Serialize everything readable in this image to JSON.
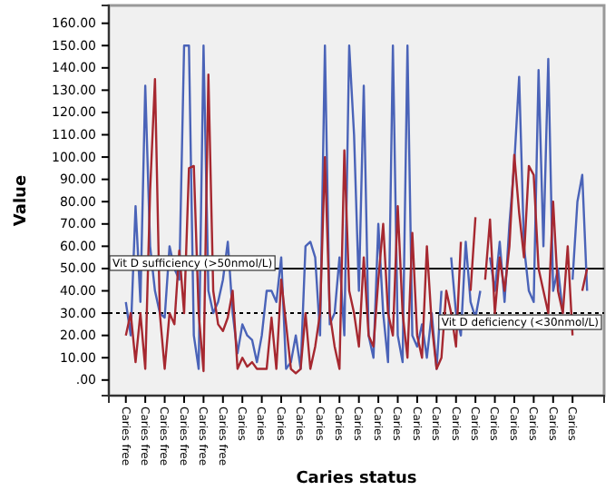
{
  "chart_data": {
    "type": "line",
    "xlabel": "Caries status",
    "ylabel": "Value",
    "categories": [
      "Caries free",
      null,
      null,
      null,
      "Caries free",
      null,
      null,
      null,
      "Caries free",
      null,
      null,
      null,
      "Caries free",
      null,
      null,
      null,
      "Caries free",
      null,
      null,
      null,
      "Caries free",
      null,
      null,
      null,
      "Caries",
      null,
      null,
      null,
      "Caries",
      null,
      null,
      null,
      "Caries",
      null,
      null,
      null,
      "Caries",
      null,
      null,
      null,
      "Caries",
      null,
      null,
      null,
      "Caries",
      null,
      null,
      null,
      "Caries",
      null,
      null,
      null,
      "Caries",
      null,
      null,
      null,
      "Caries",
      null,
      null,
      null,
      "Caries",
      null,
      null,
      null,
      "Caries",
      null,
      null,
      null,
      "Caries",
      null,
      null,
      null,
      "Caries",
      null,
      null,
      null,
      "Caries",
      null,
      null,
      null,
      "Caries",
      null,
      null,
      null,
      "Caries",
      null,
      null,
      null,
      "Caries",
      null,
      null,
      null,
      "Caries",
      null,
      null,
      null
    ],
    "series": [
      {
        "color": "#4a63b8",
        "values": [
          35,
          20,
          78,
          35,
          132,
          60,
          40,
          30,
          28,
          60,
          50,
          45,
          150,
          150,
          20,
          5,
          150,
          40,
          30,
          35,
          45,
          62,
          30,
          12,
          25,
          20,
          18,
          8,
          20,
          40,
          40,
          35,
          55,
          5,
          8,
          20,
          5,
          60,
          62,
          55,
          20,
          150,
          25,
          30,
          55,
          20,
          150,
          110,
          40,
          132,
          20,
          10,
          70,
          30,
          8,
          150,
          20,
          8,
          150,
          20,
          15,
          25,
          10,
          30,
          5,
          40,
          null,
          55,
          30,
          20,
          62,
          35,
          28,
          40,
          null,
          55,
          40,
          62,
          35,
          70,
          97,
          136,
          60,
          40,
          35,
          139,
          60,
          144,
          40,
          50,
          30,
          null,
          45,
          80,
          92,
          40
        ]
      },
      {
        "color": "#a62830",
        "values": [
          20,
          30,
          8,
          30,
          5,
          85,
          135,
          30,
          5,
          30,
          25,
          58,
          30,
          95,
          96,
          30,
          4,
          137,
          40,
          25,
          22,
          28,
          40,
          5,
          10,
          6,
          8,
          5,
          5,
          5,
          28,
          5,
          45,
          25,
          5,
          3,
          5,
          30,
          5,
          15,
          30,
          100,
          30,
          15,
          5,
          103,
          40,
          30,
          15,
          55,
          20,
          15,
          45,
          70,
          30,
          20,
          78,
          30,
          10,
          66,
          20,
          10,
          60,
          25,
          5,
          10,
          40,
          30,
          15,
          62,
          null,
          40,
          73,
          null,
          45,
          72,
          30,
          55,
          40,
          60,
          101,
          75,
          55,
          96,
          92,
          50,
          40,
          30,
          80,
          40,
          30,
          60,
          20,
          null,
          40,
          50
        ]
      }
    ],
    "ylim": [
      -7,
      168
    ],
    "yticks": [
      {
        "value": 0,
        "label": ".00"
      },
      {
        "value": 10,
        "label": "10.00"
      },
      {
        "value": 20,
        "label": "20.00"
      },
      {
        "value": 30,
        "label": "30.00"
      },
      {
        "value": 40,
        "label": "40.00"
      },
      {
        "value": 50,
        "label": "50.00"
      },
      {
        "value": 60,
        "label": "60.00"
      },
      {
        "value": 70,
        "label": "70.00"
      },
      {
        "value": 80,
        "label": "80.00"
      },
      {
        "value": 90,
        "label": "90.00"
      },
      {
        "value": 100,
        "label": "100.00"
      },
      {
        "value": 110,
        "label": "110.00"
      },
      {
        "value": 120,
        "label": "120.00"
      },
      {
        "value": 130,
        "label": "130.00"
      },
      {
        "value": 140,
        "label": "140.00"
      },
      {
        "value": 150,
        "label": "150.00"
      },
      {
        "value": 160,
        "label": "160.00"
      }
    ],
    "ref_lines": [
      {
        "axis": "y",
        "value": 50,
        "label": "Vit D sufficiency (>50nmol/L)",
        "color": "#000000",
        "line_style": "solid"
      },
      {
        "axis": "y",
        "value": 30,
        "label": "Vit D deficiency (<30nmol/L)",
        "color": "#000000",
        "line_style": "dotted"
      }
    ],
    "grid": false,
    "marker": "none",
    "line_style": "solid"
  }
}
